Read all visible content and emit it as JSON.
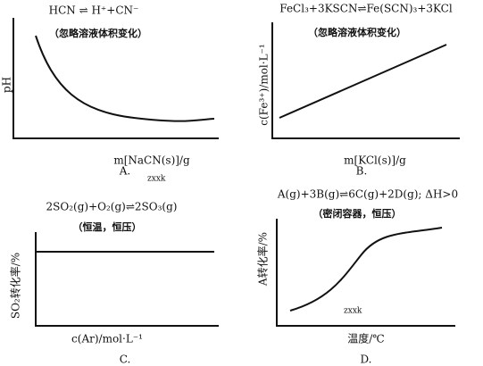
{
  "panels": [
    {
      "equation": "HCN ⇌ H⁺+CN⁻",
      "note": "（忽略溶液体积变化）",
      "y_label": "pH",
      "x_label": "m[NaCN(s)]/g",
      "label": "A.",
      "watermark": "zxxk"
    },
    {
      "equation": "FeCl₃+3KSCN⇌Fe(SCN)₃+3KCl",
      "note": "（忽略溶液体积变化）",
      "y_label": "c(Fe³⁺)/mol·L⁻¹",
      "x_label": "m[KCl(s)]/g",
      "label": "B."
    },
    {
      "equation": "2SO₂(g)+O₂(g)⇌2SO₃(g)",
      "note": "（恒温，恒压）",
      "y_label": "SO₂转化率/%",
      "x_label": "c(Ar)/mol·L⁻¹",
      "label": "C."
    },
    {
      "equation": "A(g)+3B(g)⇌6C(g)+2D(g); ΔH>0",
      "note": "（密闭容器，恒压）",
      "y_label": "A转化率/%",
      "x_label": "温度/℃",
      "label": "D.",
      "watermark": "zxxk"
    }
  ]
}
